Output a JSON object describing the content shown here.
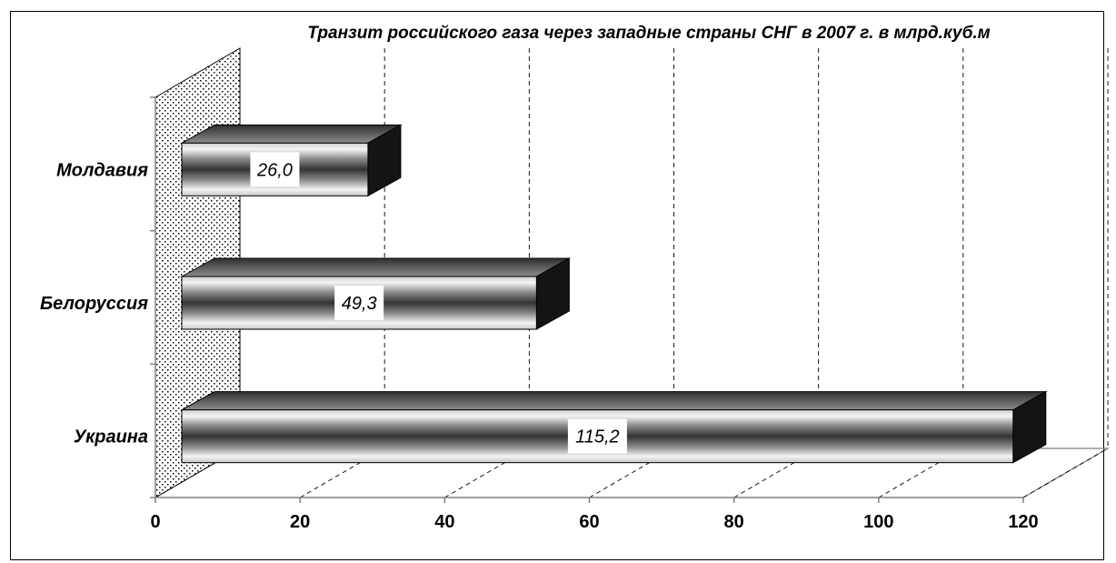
{
  "chart_data": {
    "type": "bar",
    "orientation": "horizontal",
    "title": "Транзит российского газа через западные страны СНГ в 2007 г. в млрд.куб.м",
    "categories": [
      "Молдавия",
      "Белоруссия",
      "Украина"
    ],
    "values": [
      26.0,
      49.3,
      115.2
    ],
    "value_labels": [
      "26,0",
      "49,3",
      "115,2"
    ],
    "x_ticks": [
      "0",
      "20",
      "40",
      "60",
      "80",
      "100",
      "120"
    ],
    "xlim": [
      0,
      120
    ],
    "xlabel": "",
    "ylabel": "",
    "grid": true,
    "legend": "none",
    "style": "3d",
    "colors": {
      "bar_light": "#f2f2f2",
      "bar_dark": "#3a3a3a",
      "bar_side": "#141414",
      "frame": "#000000"
    }
  }
}
